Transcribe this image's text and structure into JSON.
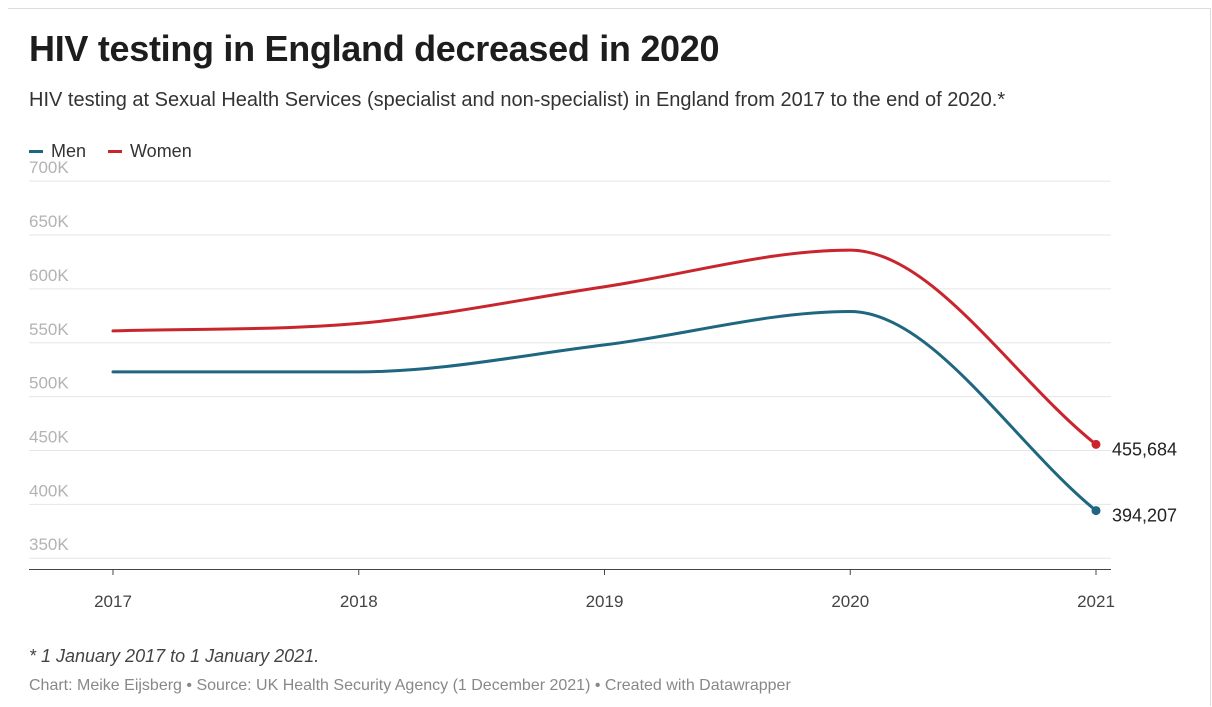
{
  "header": {
    "title": "HIV testing in England decreased in 2020",
    "subtitle": "HIV testing at Sexual Health Services (specialist and non-specialist) in England from 2017 to the end of 2020.*"
  },
  "footer": {
    "note": "* 1 January 2017 to 1 January 2021.",
    "credit": "Chart: Meike Eijsberg • Source: UK Health Security Agency (1 December 2021) • Created with Datawrapper"
  },
  "colors": {
    "men": "#1f6680",
    "women": "#c9252c",
    "grid": "#e6e6e6"
  },
  "chart_data": {
    "type": "line",
    "title": "HIV testing in England decreased in 2020",
    "xlabel": "",
    "ylabel": "",
    "x": [
      "2017",
      "2018",
      "2019",
      "2020",
      "2021"
    ],
    "ylim": [
      340000,
      715000
    ],
    "yticks": [
      350000,
      400000,
      450000,
      500000,
      550000,
      600000,
      650000,
      700000
    ],
    "ytick_labels": [
      "350K",
      "400K",
      "450K",
      "500K",
      "550K",
      "600K",
      "650K",
      "700K"
    ],
    "grid": true,
    "legend": "top-left",
    "series": [
      {
        "name": "Men",
        "color": "#1f6680",
        "values": [
          523000,
          523000,
          548000,
          579000,
          394207
        ],
        "end_label": "394,207"
      },
      {
        "name": "Women",
        "color": "#c9252c",
        "values": [
          561000,
          568000,
          602000,
          636000,
          455684
        ],
        "end_label": "455,684"
      }
    ]
  }
}
